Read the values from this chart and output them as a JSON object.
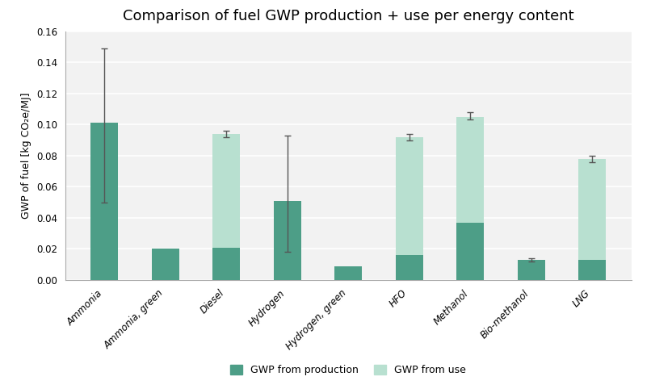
{
  "title": "Comparison of fuel GWP production + use per energy content",
  "ylabel": "GWP of fuel [kg CO₂e/MJ]",
  "categories": [
    "Ammonia",
    "Ammonia, green",
    "Diesel",
    "Hydrogen",
    "Hydrogen, green",
    "HFO",
    "Methanol",
    "Bio-methanol",
    "LNG"
  ],
  "production_values": [
    0.101,
    0.02,
    0.021,
    0.051,
    0.009,
    0.016,
    0.037,
    0.013,
    0.013
  ],
  "use_values": [
    0.0,
    0.0,
    0.073,
    0.0,
    0.0,
    0.076,
    0.068,
    0.0,
    0.065
  ],
  "error_low": [
    0.051,
    0.0,
    0.002,
    0.033,
    0.0,
    0.002,
    0.002,
    0.001,
    0.002
  ],
  "error_high": [
    0.048,
    0.0,
    0.002,
    0.042,
    0.0,
    0.002,
    0.003,
    0.001,
    0.002
  ],
  "color_production": "#4d9e87",
  "color_use": "#b8e0d0",
  "ylim": [
    0,
    0.16
  ],
  "yticks": [
    0.0,
    0.02,
    0.04,
    0.06,
    0.08,
    0.1,
    0.12,
    0.14,
    0.16
  ],
  "bar_width": 0.45,
  "background_color": "#ffffff",
  "plot_bg_color": "#f2f2f2",
  "grid_color": "#ffffff",
  "legend_prod": "GWP from production",
  "legend_use": "GWP from use",
  "title_fontsize": 13,
  "label_fontsize": 9,
  "tick_fontsize": 8.5
}
